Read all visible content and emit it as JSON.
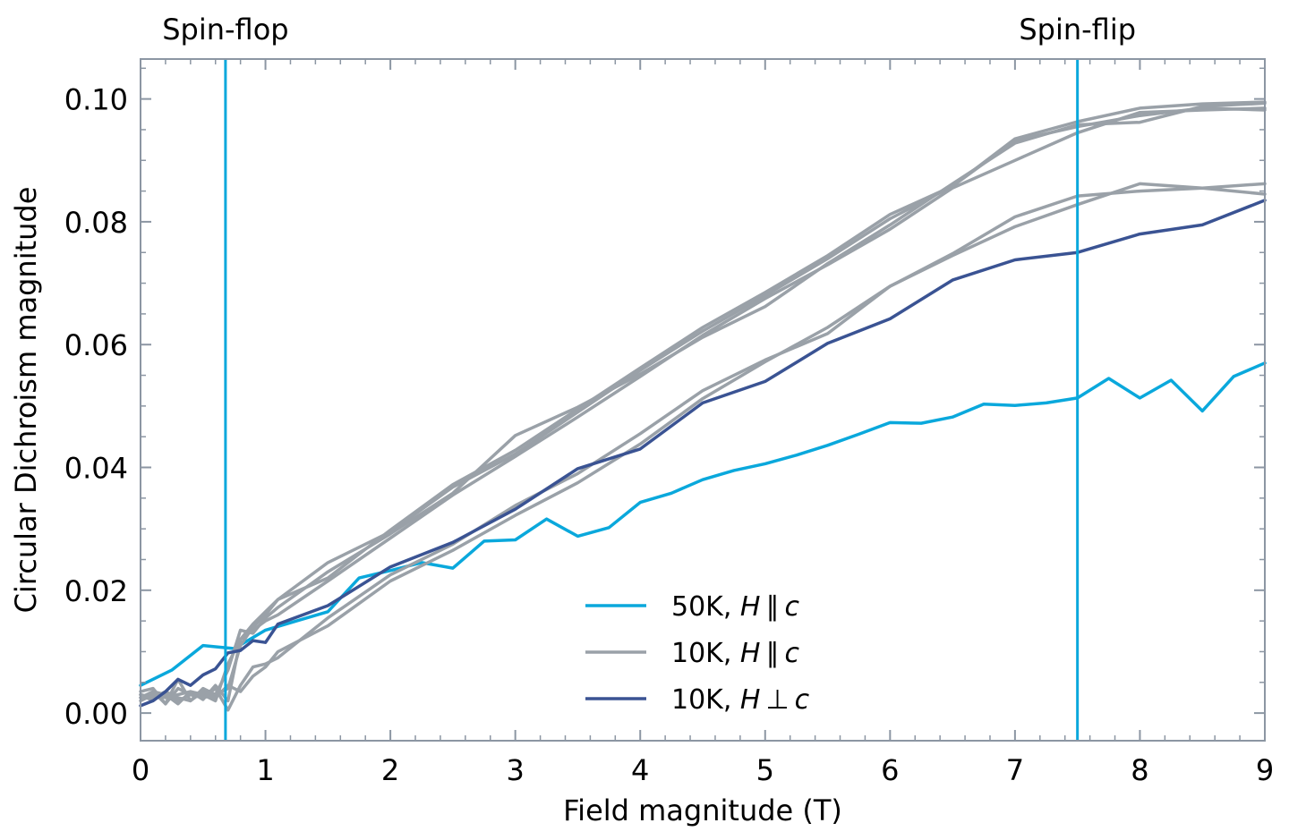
{
  "chart_data": {
    "type": "line",
    "title": "",
    "xlabel": "Field magnitude (T)",
    "ylabel": "Circular Dichroism magnitude",
    "xlim": [
      0,
      9
    ],
    "ylim": [
      -0.0045,
      0.1065
    ],
    "x_ticks": [
      "0",
      "1",
      "2",
      "3",
      "4",
      "5",
      "6",
      "7",
      "8",
      "9"
    ],
    "y_ticks": [
      "0.00",
      "0.02",
      "0.04",
      "0.06",
      "0.08",
      "0.10"
    ],
    "grid": false,
    "legend_position": "lower-center",
    "colors": {
      "c50": "#0aa8dc",
      "c10para": "#9aa1a8",
      "c10perp": "#3a5393",
      "axis": "#8c96a3"
    },
    "annotations": [
      {
        "text": "Spin-flop",
        "x": 0.68
      },
      {
        "text": "Spin-flip",
        "x": 7.5
      }
    ],
    "legend": [
      {
        "key": "c50",
        "prefix": "50K, ",
        "h": "H",
        "rel": "∥",
        "c": "c"
      },
      {
        "key": "c10para",
        "prefix": "10K, ",
        "h": "H",
        "rel": "∥",
        "c": "c"
      },
      {
        "key": "c10perp",
        "prefix": "10K, ",
        "h": "H",
        "rel": "⊥",
        "c": "c"
      }
    ],
    "series": [
      {
        "key": "c50",
        "x": [
          0,
          0.25,
          0.5,
          0.75,
          1,
          1.25,
          1.5,
          1.75,
          2,
          2.25,
          2.5,
          2.75,
          3,
          3.25,
          3.5,
          3.75,
          4,
          4.25,
          4.5,
          4.75,
          5,
          5.25,
          5.5,
          5.75,
          6,
          6.25,
          6.5,
          6.75,
          7,
          7.25,
          7.5,
          7.75,
          8,
          8.25,
          8.5,
          8.75,
          9
        ],
        "y": [
          0.0045,
          0.007,
          0.011,
          0.0105,
          0.0135,
          0.015,
          0.0165,
          0.022,
          0.0232,
          0.0245,
          0.0236,
          0.028,
          0.0282,
          0.0316,
          0.0288,
          0.0302,
          0.0343,
          0.0358,
          0.038,
          0.0395,
          0.0406,
          0.042,
          0.0436,
          0.0454,
          0.0473,
          0.0472,
          0.0482,
          0.0503,
          0.0501,
          0.0505,
          0.0513,
          0.0545,
          0.0513,
          0.0542,
          0.0492,
          0.0548,
          0.057
        ]
      },
      {
        "key": "c10para",
        "x": [
          0,
          0.1,
          0.2,
          0.3,
          0.4,
          0.5,
          0.6,
          0.7,
          0.8,
          0.9,
          1,
          1.1,
          1.5,
          2,
          2.5,
          3,
          3.5,
          4,
          4.5,
          5,
          5.5,
          6,
          6.5,
          7,
          7.5,
          8,
          8.5,
          9
        ],
        "y": [
          0.003,
          0.0025,
          0.0035,
          0.002,
          0.003,
          0.0025,
          0.003,
          0.004,
          0.011,
          0.014,
          0.016,
          0.0185,
          0.0245,
          0.0295,
          0.0368,
          0.0422,
          0.049,
          0.0558,
          0.0622,
          0.068,
          0.074,
          0.0805,
          0.0858,
          0.0935,
          0.0963,
          0.0985,
          0.0992,
          0.0995
        ]
      },
      {
        "key": "c10para",
        "x": [
          0,
          0.1,
          0.2,
          0.3,
          0.4,
          0.5,
          0.6,
          0.7,
          0.8,
          0.9,
          1,
          1.1,
          1.5,
          2,
          2.5,
          3,
          3.5,
          4,
          4.5,
          5,
          5.5,
          6,
          6.5,
          7,
          7.5,
          8,
          8.5,
          9
        ],
        "y": [
          0.0035,
          0.004,
          0.0015,
          0.0055,
          0.002,
          0.004,
          0.003,
          0.007,
          0.0135,
          0.013,
          0.0155,
          0.0172,
          0.023,
          0.0292,
          0.0358,
          0.0452,
          0.0498,
          0.0552,
          0.0612,
          0.0662,
          0.0732,
          0.0795,
          0.0862,
          0.0928,
          0.0958,
          0.0962,
          0.0988,
          0.0993
        ]
      },
      {
        "key": "c10para",
        "x": [
          0,
          0.1,
          0.2,
          0.3,
          0.4,
          0.5,
          0.6,
          0.7,
          0.8,
          0.9,
          1,
          1.1,
          1.5,
          2,
          2.5,
          3,
          3.5,
          4,
          4.5,
          5,
          5.5,
          6,
          6.5,
          7,
          7.5,
          8,
          8.5,
          9
        ],
        "y": [
          0.002,
          0.003,
          0.0025,
          0.003,
          0.0035,
          0.0022,
          0.0045,
          0.002,
          0.012,
          0.0145,
          0.0165,
          0.0185,
          0.022,
          0.0298,
          0.0372,
          0.0428,
          0.0495,
          0.0562,
          0.0628,
          0.0685,
          0.0745,
          0.0812,
          0.0858,
          0.0932,
          0.0955,
          0.0973,
          0.0985,
          0.0982
        ]
      },
      {
        "key": "c10para",
        "x": [
          0,
          0.1,
          0.2,
          0.3,
          0.4,
          0.5,
          0.6,
          0.7,
          0.8,
          0.9,
          1,
          1.1,
          1.5,
          2,
          2.5,
          3,
          3.5,
          4,
          4.5,
          5,
          5.5,
          6,
          6.5,
          7,
          7.5,
          8,
          8.5,
          9
        ],
        "y": [
          0.0025,
          0.0035,
          0.003,
          0.0015,
          0.0035,
          0.003,
          0.002,
          0.008,
          0.012,
          0.0135,
          0.015,
          0.016,
          0.0215,
          0.0285,
          0.0355,
          0.0418,
          0.0482,
          0.0548,
          0.0615,
          0.0675,
          0.073,
          0.0788,
          0.0855,
          0.09,
          0.0945,
          0.0978,
          0.0982,
          0.0985
        ]
      },
      {
        "key": "c10para",
        "x": [
          0,
          0.1,
          0.2,
          0.3,
          0.4,
          0.5,
          0.6,
          0.7,
          0.8,
          0.9,
          1,
          1.1,
          1.5,
          2,
          2.5,
          3,
          3.5,
          4,
          4.5,
          5,
          5.5,
          6,
          6.5,
          7,
          7.5,
          8,
          8.5,
          9
        ],
        "y": [
          0.003,
          0.002,
          0.0035,
          0.0025,
          0.002,
          0.0035,
          0.0025,
          0.0045,
          0.0035,
          0.006,
          0.0075,
          0.01,
          0.0142,
          0.0215,
          0.0265,
          0.0322,
          0.0375,
          0.0438,
          0.0512,
          0.0572,
          0.0628,
          0.0695,
          0.0745,
          0.0792,
          0.0828,
          0.0862,
          0.0855,
          0.0862
        ]
      },
      {
        "key": "c10para",
        "x": [
          0,
          0.1,
          0.2,
          0.3,
          0.4,
          0.5,
          0.6,
          0.7,
          0.8,
          0.9,
          1,
          1.1,
          1.5,
          2,
          2.5,
          3,
          3.5,
          4,
          4.5,
          5,
          5.5,
          6,
          6.5,
          7,
          7.5,
          8,
          8.5,
          9
        ],
        "y": [
          0.0025,
          0.0035,
          0.0015,
          0.004,
          0.003,
          0.0025,
          0.004,
          0.0005,
          0.0045,
          0.0075,
          0.008,
          0.009,
          0.0155,
          0.0225,
          0.0275,
          0.0338,
          0.039,
          0.0455,
          0.0525,
          0.0575,
          0.0618,
          0.0695,
          0.0748,
          0.0808,
          0.0842,
          0.085,
          0.0855,
          0.0845
        ]
      },
      {
        "key": "c10perp",
        "x": [
          0,
          0.1,
          0.2,
          0.3,
          0.4,
          0.5,
          0.6,
          0.7,
          0.8,
          0.9,
          1,
          1.1,
          1.5,
          2,
          2.5,
          3,
          3.5,
          4,
          4.5,
          5,
          5.5,
          6,
          6.5,
          7,
          7.5,
          8,
          8.5,
          9
        ],
        "y": [
          0.0012,
          0.002,
          0.0035,
          0.0055,
          0.0045,
          0.0062,
          0.0072,
          0.0098,
          0.0102,
          0.0118,
          0.0115,
          0.0145,
          0.0175,
          0.0238,
          0.0278,
          0.0332,
          0.0398,
          0.043,
          0.0505,
          0.054,
          0.0602,
          0.0642,
          0.0705,
          0.0738,
          0.075,
          0.078,
          0.0795,
          0.0835
        ]
      }
    ]
  }
}
